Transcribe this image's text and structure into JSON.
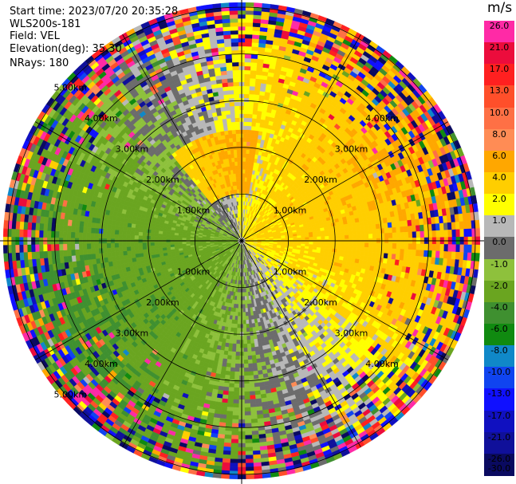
{
  "info": {
    "start_time": "Start time: 2023/07/20 20:35:28",
    "instrument": "WLS200s-181",
    "field": "Field: VEL",
    "elevation": "Elevation(deg): 35.30",
    "nrays": "NRays: 180"
  },
  "colorbar": {
    "unit": "m/s",
    "labels": [
      "26.0",
      "21.0",
      "17.0",
      "13.0",
      "10.0",
      "8.0",
      "6.0",
      "4.0",
      "2.0",
      "1.0",
      "0.0",
      "-1.0",
      "-2.0",
      "-4.0",
      "-6.0",
      "-8.0",
      "-10.0",
      "-13.0",
      "-17.0",
      "-21.0",
      "-26.0",
      "-30.0"
    ],
    "colors": [
      "#ff2aa6",
      "#ec0c3c",
      "#ff2020",
      "#ff4f2a",
      "#fe7045",
      "#ff8c55",
      "#ffa700",
      "#ffce00",
      "#ffff00",
      "#b8b8b8",
      "#6c6c6c",
      "#8ec13c",
      "#6aa520",
      "#3f9030",
      "#108a10",
      "#1088c8",
      "#1044f0",
      "#1010ff",
      "#1010c0",
      "#10109a",
      "#0a0a60"
    ]
  },
  "range_labels": [
    "1.00km",
    "2.00km",
    "3.00km",
    "4.00km",
    "5.00km"
  ],
  "chart_data": {
    "type": "heatmap",
    "subtype": "PPI radar velocity scan",
    "field": "VEL",
    "unit": "m/s",
    "elevation_deg": 35.3,
    "nrays": 180,
    "range_rings_km": [
      1,
      2,
      3,
      4,
      5
    ],
    "max_range_km": 5.1,
    "color_scale_bounds": [
      -30.0,
      -26.0,
      -21.0,
      -17.0,
      -13.0,
      -10.0,
      -8.0,
      -6.0,
      -4.0,
      -2.0,
      -1.0,
      0.0,
      1.0,
      2.0,
      4.0,
      6.0,
      8.0,
      10.0,
      13.0,
      17.0,
      21.0,
      26.0
    ]
  }
}
